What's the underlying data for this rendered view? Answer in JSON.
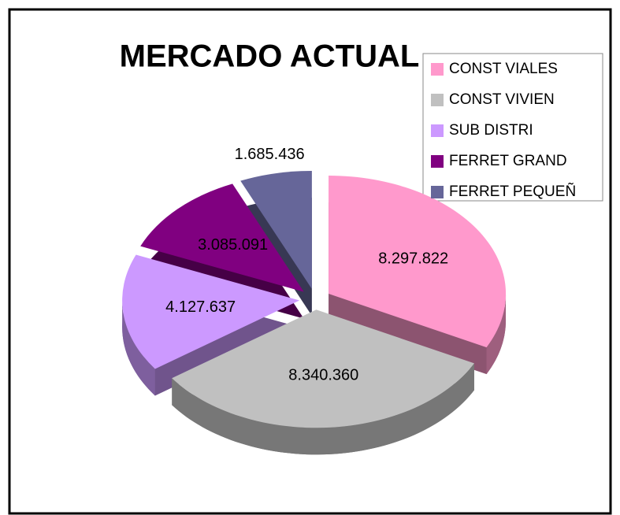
{
  "chart_data": {
    "type": "pie",
    "title": "MERCADO ACTUAL",
    "categories": [
      "CONST VIALES",
      "CONST VIVIEN",
      "SUB DISTRI",
      "FERRET GRAND",
      "FERRET PEQUEÑ"
    ],
    "values": [
      8297822,
      8340360,
      4127637,
      3085091,
      1685436
    ],
    "value_labels": [
      "8.297.822",
      "8.340.360",
      "4.127.637",
      "3.085.091",
      "1.685.436"
    ],
    "colors": [
      "#ff99cc",
      "#c0c0c0",
      "#cc99ff",
      "#800080",
      "#666699"
    ],
    "legend": "top-right"
  }
}
